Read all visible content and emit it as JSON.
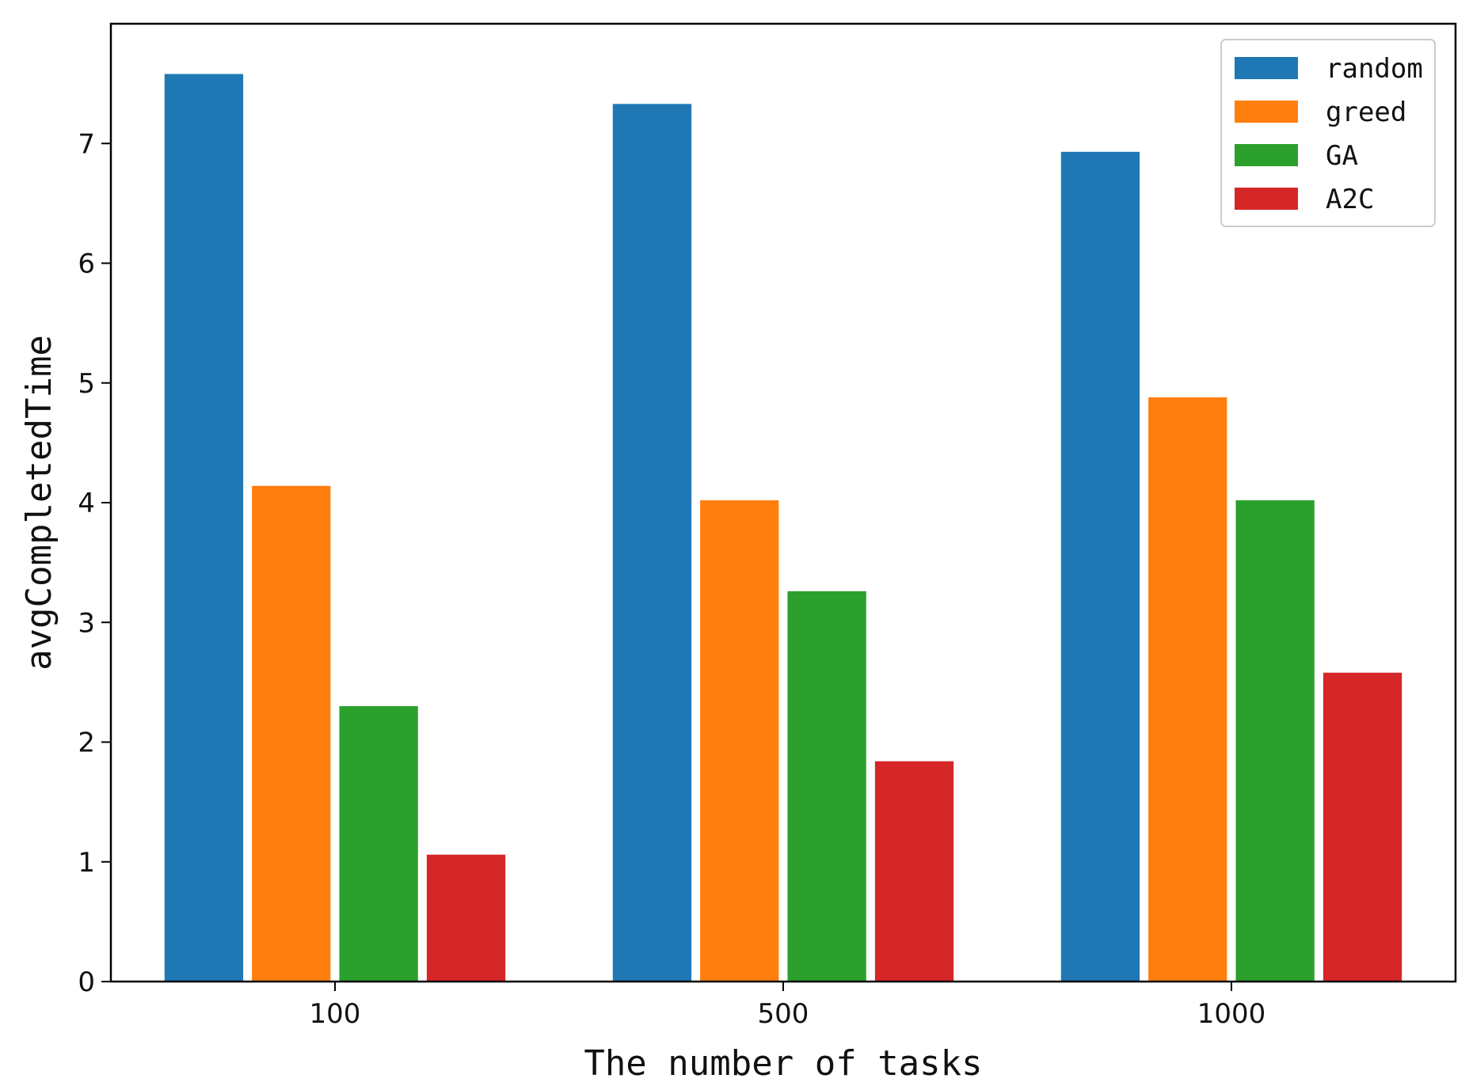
{
  "chart_data": {
    "type": "bar",
    "title": "",
    "xlabel": "The number of tasks",
    "ylabel": "avgCompletedTime",
    "categories": [
      "100",
      "500",
      "1000"
    ],
    "ylim": [
      0,
      8
    ],
    "yticks": [
      "0",
      "1",
      "2",
      "3",
      "4",
      "5",
      "6",
      "7"
    ],
    "legend_position": "top-right",
    "grid": false,
    "series": [
      {
        "name": "random",
        "color": "#1f77b4",
        "values": [
          7.58,
          7.33,
          6.93
        ]
      },
      {
        "name": "greed",
        "color": "#ff7f0e",
        "values": [
          4.14,
          4.02,
          4.88
        ]
      },
      {
        "name": "GA",
        "color": "#2ca02c",
        "values": [
          2.3,
          3.26,
          4.02
        ]
      },
      {
        "name": "A2C",
        "color": "#d62728",
        "values": [
          1.06,
          1.84,
          2.58
        ]
      }
    ]
  }
}
